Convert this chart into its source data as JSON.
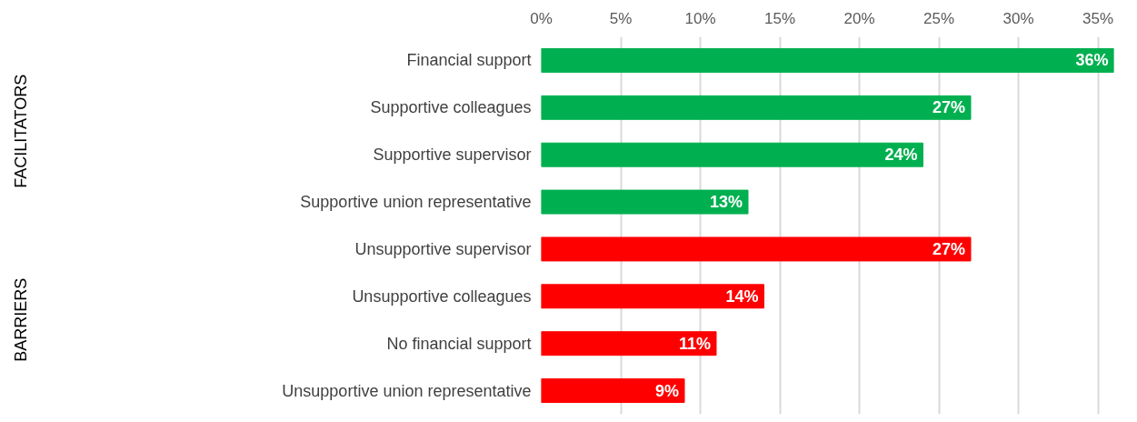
{
  "chart_data": {
    "type": "bar",
    "orientation": "horizontal",
    "categories": [
      "Financial support",
      "Supportive colleagues",
      "Supportive supervisor",
      "Supportive union representative",
      "Unsupportive supervisor",
      "Unsupportive colleagues",
      "No financial support",
      "Unsupportive union representative"
    ],
    "values": [
      36,
      27,
      24,
      13,
      27,
      14,
      11,
      9
    ],
    "colors": [
      "#00b050",
      "#00b050",
      "#00b050",
      "#00b050",
      "#ff0000",
      "#ff0000",
      "#ff0000",
      "#ff0000"
    ],
    "value_labels": [
      "36%",
      "27%",
      "24%",
      "13%",
      "27%",
      "14%",
      "11%",
      "9%"
    ],
    "xlim": [
      0,
      36
    ],
    "xticks": [
      {
        "value": 0,
        "label": "0%"
      },
      {
        "value": 5,
        "label": "5%"
      },
      {
        "value": 10,
        "label": "10%"
      },
      {
        "value": 15,
        "label": "15%"
      },
      {
        "value": 20,
        "label": "20%"
      },
      {
        "value": 25,
        "label": "25%"
      },
      {
        "value": 30,
        "label": "30%"
      },
      {
        "value": 35,
        "label": "35%"
      }
    ],
    "grid": "x",
    "annotations": [
      "FACILITATORS",
      "BARRIERS"
    ]
  }
}
